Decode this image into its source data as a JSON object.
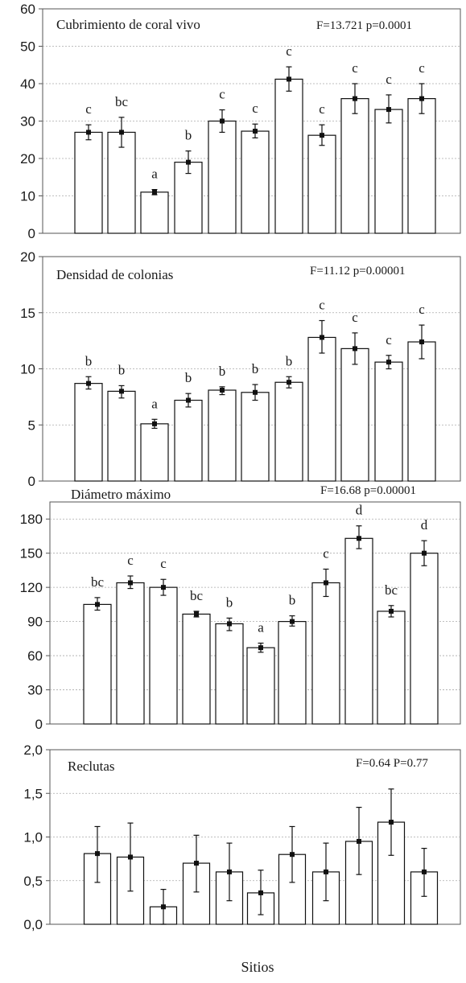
{
  "xlabel": "Sitios",
  "chart_data": [
    {
      "type": "bar",
      "title": "Cubrimiento de coral vivo",
      "stats": "F=13.721 p=0.0001",
      "ylim": [
        0,
        60
      ],
      "yticks": [
        "0",
        "10",
        "20",
        "30",
        "40",
        "50",
        "60"
      ],
      "grid": true,
      "values": [
        27,
        27,
        11,
        19,
        30,
        27.3,
        41.2,
        26.2,
        36,
        33.1,
        36
      ],
      "error": [
        [
          25,
          29
        ],
        [
          23,
          31
        ],
        [
          10.3,
          11.7
        ],
        [
          16,
          22
        ],
        [
          27,
          33
        ],
        [
          25.5,
          29.2
        ],
        [
          38,
          44.5
        ],
        [
          23.5,
          29
        ],
        [
          32,
          40
        ],
        [
          29.5,
          37
        ],
        [
          32,
          40
        ]
      ],
      "letters": [
        "c",
        "bc",
        "a",
        "b",
        "c",
        "c",
        "c",
        "c",
        "c",
        "c",
        "c"
      ]
    },
    {
      "type": "bar",
      "title": "Densidad de colonias",
      "stats": "F=11.12 p=0.00001",
      "ylim": [
        0,
        20
      ],
      "yticks": [
        "0",
        "5",
        "10",
        "15",
        "20"
      ],
      "grid": true,
      "values": [
        8.7,
        8,
        5.1,
        7.2,
        8.1,
        7.9,
        8.8,
        12.8,
        11.8,
        10.6,
        12.4
      ],
      "error": [
        [
          8.2,
          9.3
        ],
        [
          7.4,
          8.5
        ],
        [
          4.7,
          5.5
        ],
        [
          6.6,
          7.8
        ],
        [
          7.7,
          8.4
        ],
        [
          7.2,
          8.6
        ],
        [
          8.3,
          9.3
        ],
        [
          11.4,
          14.3
        ],
        [
          10.4,
          13.2
        ],
        [
          10,
          11.2
        ],
        [
          10.9,
          13.9
        ]
      ],
      "letters": [
        "b",
        "b",
        "a",
        "b",
        "b",
        "b",
        "b",
        "c",
        "c",
        "c",
        "c"
      ]
    },
    {
      "type": "bar",
      "title": "Diámetro máximo",
      "stats": "F=16.68 p=0.00001",
      "ylim": [
        0,
        195
      ],
      "yticks": [
        "0",
        "30",
        "60",
        "90",
        "120",
        "150",
        "180"
      ],
      "grid": true,
      "values": [
        105,
        124,
        120,
        96.5,
        88,
        67,
        90,
        124,
        163,
        99,
        150
      ],
      "error": [
        [
          100,
          111
        ],
        [
          119,
          130
        ],
        [
          113,
          127
        ],
        [
          94,
          99
        ],
        [
          82,
          93
        ],
        [
          63,
          71
        ],
        [
          86,
          95
        ],
        [
          112,
          136
        ],
        [
          154,
          174
        ],
        [
          94,
          104
        ],
        [
          139,
          161
        ]
      ],
      "letters": [
        "bc",
        "c",
        "c",
        "bc",
        "b",
        "a",
        "b",
        "c",
        "d",
        "bc",
        "d"
      ]
    },
    {
      "type": "bar",
      "title": "Reclutas",
      "stats": "F=0.64 P=0.77",
      "ylim": [
        0,
        2
      ],
      "yticks": [
        "0,0",
        "0,5",
        "1,0",
        "1,5",
        "2,0"
      ],
      "grid": true,
      "values": [
        0.81,
        0.77,
        0.2,
        0.7,
        0.6,
        0.36,
        0.8,
        0.6,
        0.95,
        1.17,
        0.6
      ],
      "error": [
        [
          0.48,
          1.12
        ],
        [
          0.38,
          1.16
        ],
        [
          0.0,
          0.4
        ],
        [
          0.37,
          1.02
        ],
        [
          0.27,
          0.93
        ],
        [
          0.11,
          0.62
        ],
        [
          0.48,
          1.12
        ],
        [
          0.27,
          0.93
        ],
        [
          0.57,
          1.34
        ],
        [
          0.79,
          1.55
        ],
        [
          0.32,
          0.87
        ]
      ],
      "letters": []
    }
  ]
}
